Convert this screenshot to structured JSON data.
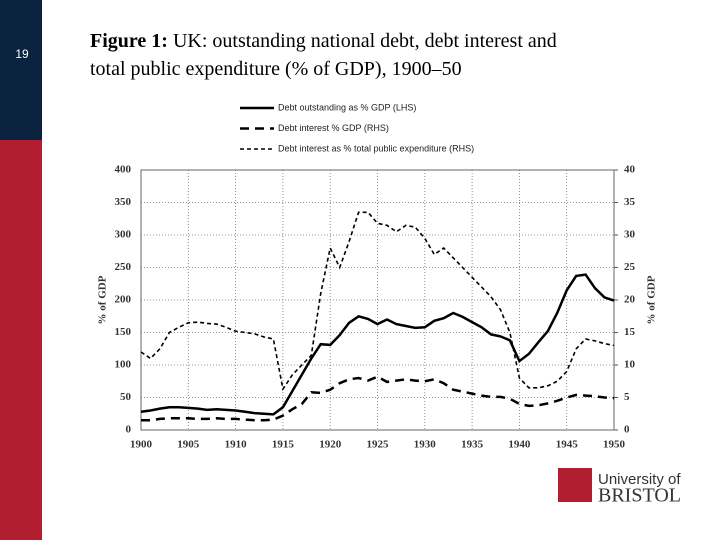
{
  "slide_number": "19",
  "title_label": "Figure 1:",
  "logo": {
    "line1": "University of",
    "line2": "BRISTOL"
  },
  "chart_data": {
    "type": "line",
    "title": "UK: outstanding national debt, debt interest and total public expenditure (% of GDP), 1900–50",
    "ylabel": "% of GDP",
    "y2label": "% of GDP",
    "x": [
      1900,
      1901,
      1902,
      1903,
      1904,
      1905,
      1906,
      1907,
      1908,
      1909,
      1910,
      1911,
      1912,
      1913,
      1914,
      1915,
      1916,
      1917,
      1918,
      1919,
      1920,
      1921,
      1922,
      1923,
      1924,
      1925,
      1926,
      1927,
      1928,
      1929,
      1930,
      1931,
      1932,
      1933,
      1934,
      1935,
      1936,
      1937,
      1938,
      1939,
      1940,
      1941,
      1942,
      1943,
      1944,
      1945,
      1946,
      1947,
      1948,
      1949,
      1950
    ],
    "xlim": [
      1900,
      1950
    ],
    "xticks": [
      1900,
      1905,
      1910,
      1915,
      1920,
      1925,
      1930,
      1935,
      1940,
      1945,
      1950
    ],
    "ylim": [
      0,
      400
    ],
    "yticks": [
      0,
      50,
      100,
      150,
      200,
      250,
      300,
      350,
      400
    ],
    "y2lim": [
      0,
      40
    ],
    "y2ticks": [
      0,
      5,
      10,
      15,
      20,
      25,
      30,
      35,
      40
    ],
    "grid": true,
    "series": [
      {
        "name": "Debt outstanding as % GDP (LHS)",
        "color": "#000000",
        "style": "solid",
        "values": [
          28,
          30,
          33,
          35,
          35,
          34,
          33,
          31,
          32,
          31,
          30,
          28,
          26,
          25,
          24,
          35,
          60,
          85,
          110,
          132,
          131,
          146,
          165,
          175,
          171,
          163,
          170,
          163,
          160,
          157,
          158,
          168,
          172,
          180,
          174,
          166,
          158,
          147,
          144,
          138,
          106,
          117,
          135,
          152,
          180,
          215,
          237,
          239,
          218,
          204,
          199
        ]
      },
      {
        "name": "Debt interest % GDP (RHS)",
        "color": "#000000",
        "style": "dashed",
        "axis": "y2",
        "values": [
          1.5,
          1.5,
          1.7,
          1.8,
          1.8,
          1.8,
          1.7,
          1.7,
          1.8,
          1.7,
          1.7,
          1.6,
          1.5,
          1.5,
          1.6,
          2.2,
          3.2,
          4.0,
          5.8,
          5.7,
          6.2,
          7.2,
          7.8,
          8.0,
          7.6,
          8.2,
          7.4,
          7.6,
          7.8,
          7.6,
          7.5,
          7.8,
          7.2,
          6.2,
          5.9,
          5.6,
          5.3,
          5.1,
          5.1,
          4.8,
          4.0,
          3.7,
          3.8,
          4.1,
          4.5,
          5.0,
          5.4,
          5.3,
          5.2,
          5.0,
          4.9
        ]
      },
      {
        "name": "Debt interest as % total public expenditure (RHS)",
        "color": "#000000",
        "style": "dotted",
        "axis": "y2",
        "values": [
          12,
          11,
          12.5,
          15,
          15.8,
          16.5,
          16.6,
          16.4,
          16.3,
          15.8,
          15.2,
          15,
          14.8,
          14.3,
          14,
          6.3,
          8.5,
          10,
          11.5,
          21,
          28,
          25,
          29,
          33.5,
          33.5,
          31.8,
          31.5,
          30.5,
          31.5,
          31.2,
          29.5,
          27,
          28,
          26.5,
          25,
          23.5,
          22,
          20.5,
          18.5,
          15,
          8,
          6.5,
          6.5,
          6.8,
          7.5,
          9,
          12.5,
          14,
          13.7,
          13.3,
          13
        ]
      }
    ]
  }
}
